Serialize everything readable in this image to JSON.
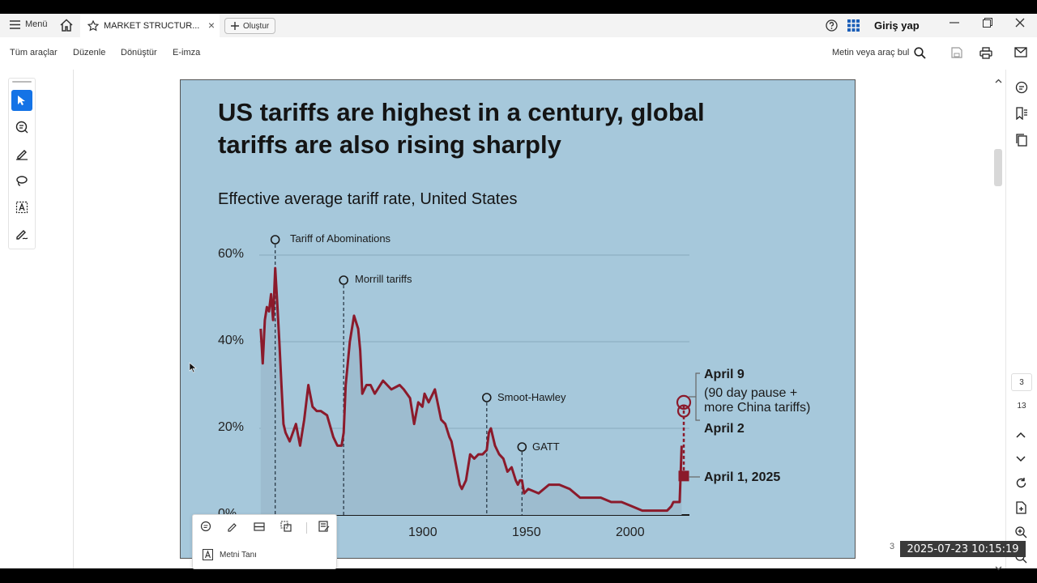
{
  "topbar": {
    "menu_label": "Menü",
    "tab_title": "MARKET STRUCTUR...",
    "tab_close": "×",
    "create_label": "Oluştur",
    "login_label": "Giriş yap"
  },
  "toolbar": {
    "items": [
      "Tüm araçlar",
      "Düzenle",
      "Dönüştür",
      "E-imza"
    ],
    "search_label": "Metin veya araç bul"
  },
  "page_nav": {
    "current": "3",
    "total": "13"
  },
  "slide": {
    "title_line1": "US tariffs are highest in a century, global",
    "title_line2": "tariffs are also rising sharply",
    "subtitle": "Effective average tariff rate, United States",
    "annotations": {
      "abominations": "Tariff of Abominations",
      "morrill": "Morrill tariffs",
      "smoot": "Smoot-Hawley",
      "gatt": "GATT",
      "april9": "April 9",
      "april9_note1": "(90 day pause +",
      "april9_note2": "more China tariffs)",
      "april2": "April 2",
      "april1": "April 1, 2025"
    }
  },
  "chart_data": {
    "type": "line",
    "title": "Effective average tariff rate, United States",
    "xlabel": "",
    "ylabel": "",
    "yticks": [
      "0%",
      "20%",
      "40%",
      "60%"
    ],
    "xticks": [
      "1900",
      "1950",
      "2000"
    ],
    "xlim": [
      1821,
      2025
    ],
    "ylim": [
      0,
      60
    ],
    "line_color": "#8b1a2b",
    "series": [
      {
        "x": [
          1821,
          1822,
          1823,
          1824,
          1825,
          1826,
          1827,
          1828,
          1829,
          1830,
          1831,
          1832,
          1833,
          1835,
          1838,
          1840,
          1842,
          1844,
          1846,
          1848,
          1850,
          1853,
          1856,
          1858,
          1860,
          1861,
          1862,
          1864,
          1866,
          1868,
          1869,
          1870,
          1872,
          1874,
          1876,
          1880,
          1884,
          1888,
          1890,
          1893,
          1895,
          1897,
          1899,
          1900,
          1902,
          1905,
          1908,
          1910,
          1912,
          1913,
          1915,
          1917,
          1918,
          1920,
          1922,
          1924,
          1926,
          1928,
          1930,
          1931,
          1932,
          1934,
          1936,
          1938,
          1940,
          1942,
          1944,
          1945,
          1946,
          1947,
          1948,
          1950,
          1955,
          1960,
          1965,
          1970,
          1975,
          1980,
          1985,
          1990,
          1995,
          2000,
          2005,
          2010,
          2015,
          2017,
          2019,
          2020,
          2023,
          2024
        ],
        "y": [
          43,
          35,
          45,
          48,
          47,
          51,
          45,
          57,
          49,
          40,
          30,
          21,
          19,
          17,
          21,
          16,
          22,
          30,
          25,
          24,
          24,
          23,
          18,
          16,
          16,
          19,
          30,
          40,
          46,
          43,
          38,
          28,
          30,
          30,
          28,
          31,
          29,
          30,
          29,
          27,
          21,
          26,
          25,
          28,
          26,
          29,
          22,
          21,
          18,
          17,
          12,
          7,
          6,
          8,
          14,
          13,
          14,
          14,
          15,
          19,
          20,
          16,
          14,
          13,
          10,
          11,
          8,
          7,
          8,
          8,
          5,
          6,
          5,
          7,
          7,
          6,
          4,
          4,
          4,
          3,
          3,
          2,
          1,
          1,
          1,
          1,
          2,
          3,
          3,
          16
        ]
      },
      {
        "name": "",
        "x": [
          2025,
          2025,
          2025
        ],
        "y": [
          9,
          24,
          26
        ]
      }
    ],
    "events": [
      {
        "year": 1828,
        "label": "Tariff of Abominations"
      },
      {
        "year": 1861,
        "label": "Morrill tariffs"
      },
      {
        "year": 1930,
        "label": "Smoot-Hawley"
      },
      {
        "year": 1947,
        "label": "GATT"
      }
    ]
  },
  "context_menu": {
    "recognize_label": "Metni Tanı"
  },
  "footer": {
    "page_label": "3",
    "timestamp": "2025-07-23  10:15:19"
  }
}
